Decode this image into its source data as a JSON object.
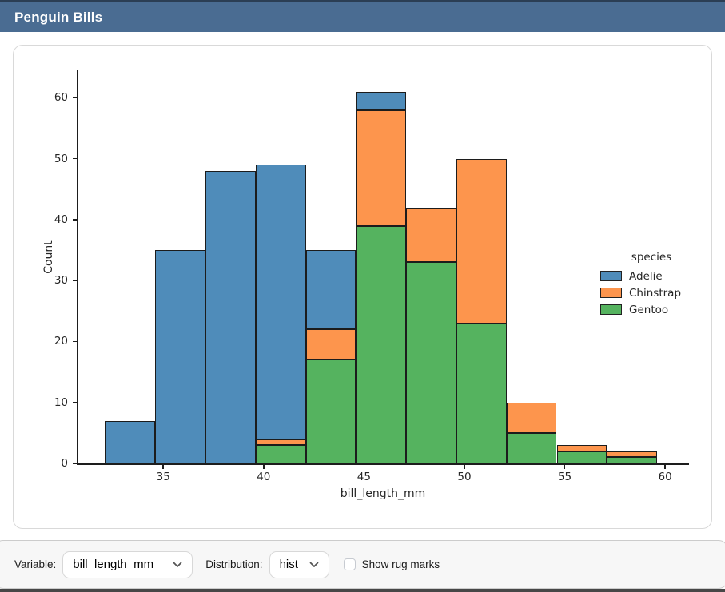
{
  "header": {
    "title": "Penguin Bills"
  },
  "theme": {
    "header_bg": "#4a6c92",
    "header_top_border": "#2b3e54",
    "card_bg": "#ffffff",
    "controls_bg": "#f7f7f7",
    "bar_edge": "#1c1c1c"
  },
  "controls": {
    "variable_label": "Variable:",
    "variable_value": "bill_length_mm",
    "distribution_label": "Distribution:",
    "distribution_value": "hist",
    "rug_label": "Show rug marks",
    "rug_checked": false
  },
  "chart_data": {
    "type": "bar",
    "subtype": "stacked_histogram",
    "title": "",
    "xlabel": "bill_length_mm",
    "ylabel": "Count",
    "xlim": [
      30.73,
      61.15
    ],
    "ylim": [
      0,
      64.5
    ],
    "xticks": [
      35,
      40,
      45,
      50,
      55,
      60
    ],
    "yticks": [
      0,
      10,
      20,
      30,
      40,
      50,
      60
    ],
    "grid": false,
    "legend": {
      "title": "species",
      "position": "center right"
    },
    "bin_edges": [
      32.1,
      34.6,
      37.1,
      39.6,
      42.1,
      44.6,
      47.1,
      49.6,
      52.1,
      54.6,
      57.1,
      59.6
    ],
    "stack_order_bottom_to_top": [
      "Gentoo",
      "Chinstrap",
      "Adelie"
    ],
    "series": [
      {
        "name": "Adelie",
        "color": "#4f8cba",
        "values": [
          7,
          35,
          48,
          45,
          13,
          3,
          0,
          0,
          0,
          0,
          0
        ]
      },
      {
        "name": "Chinstrap",
        "color": "#fd954d",
        "values": [
          0,
          0,
          0,
          1,
          5,
          19,
          9,
          27,
          5,
          1,
          1
        ]
      },
      {
        "name": "Gentoo",
        "color": "#55b35f",
        "values": [
          0,
          0,
          0,
          3,
          17,
          39,
          33,
          23,
          5,
          2,
          1
        ]
      }
    ],
    "bin_totals": [
      7,
      35,
      48,
      49,
      35,
      61,
      42,
      50,
      10,
      3,
      2
    ]
  }
}
